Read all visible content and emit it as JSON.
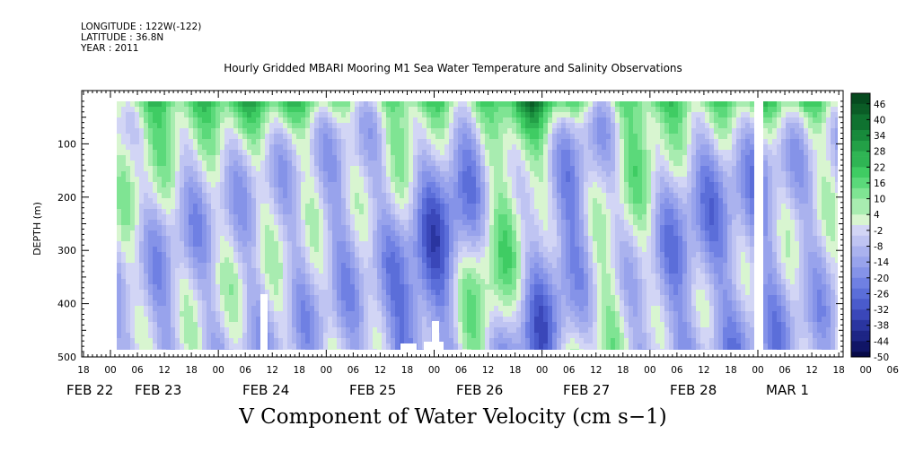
{
  "header": {
    "longitude": "LONGITUDE : 122W(-122)",
    "latitude": "LATITUDE : 36.8N",
    "year": "YEAR : 2011"
  },
  "colors": {
    "positive_scale": [
      "#d8f5d0",
      "#a8ecb0",
      "#7fe493",
      "#5bd97a",
      "#3fcc63",
      "#2fb554",
      "#23a047",
      "#178a3b",
      "#0f7230",
      "#0a5c26",
      "#064a1f"
    ],
    "negative_scale": [
      "#d2d5f5",
      "#bfc4f2",
      "#aab2ee",
      "#98a3ec",
      "#8593e8",
      "#6f80e3",
      "#5b6ed9",
      "#4a5bcc",
      "#3a47b9",
      "#2a35a0",
      "#1d2585",
      "#101566",
      "#070a48"
    ]
  },
  "chart_data": {
    "type": "heatmap",
    "title": "Hourly Gridded MBARI Mooring M1 Sea Water Temperature and Salinity Observations",
    "variable_title": "V Component of Water Velocity (cm s−1)",
    "ylabel": "DEPTH (m)",
    "ylim": [
      500,
      20
    ],
    "y_ticks": [
      100,
      200,
      300,
      400,
      500
    ],
    "x_hour_ticks": [
      "18",
      "00",
      "06",
      "12",
      "18",
      "00",
      "06",
      "12",
      "18",
      "00",
      "06",
      "12",
      "18",
      "00",
      "06",
      "12",
      "18",
      "00",
      "06",
      "12",
      "18",
      "00",
      "06",
      "12",
      "18",
      "00",
      "06",
      "12",
      "18",
      "00",
      "06",
      "12",
      "18"
    ],
    "x_day_labels": [
      "FEB 22",
      "FEB 23",
      "FEB 24",
      "FEB 25",
      "FEB 26",
      "FEB 27",
      "FEB 28",
      "MAR  1"
    ],
    "colorbar_ticks": [
      "46",
      "40",
      "34",
      "28",
      "22",
      "16",
      "10",
      "4",
      "-2",
      "-8",
      "-14",
      "-20",
      "-26",
      "-32",
      "-38",
      "-44",
      "-50"
    ],
    "colorbar_range": [
      -50,
      50
    ],
    "data_start": "FEB 23 00",
    "data_end": "MAR 1 18"
  }
}
